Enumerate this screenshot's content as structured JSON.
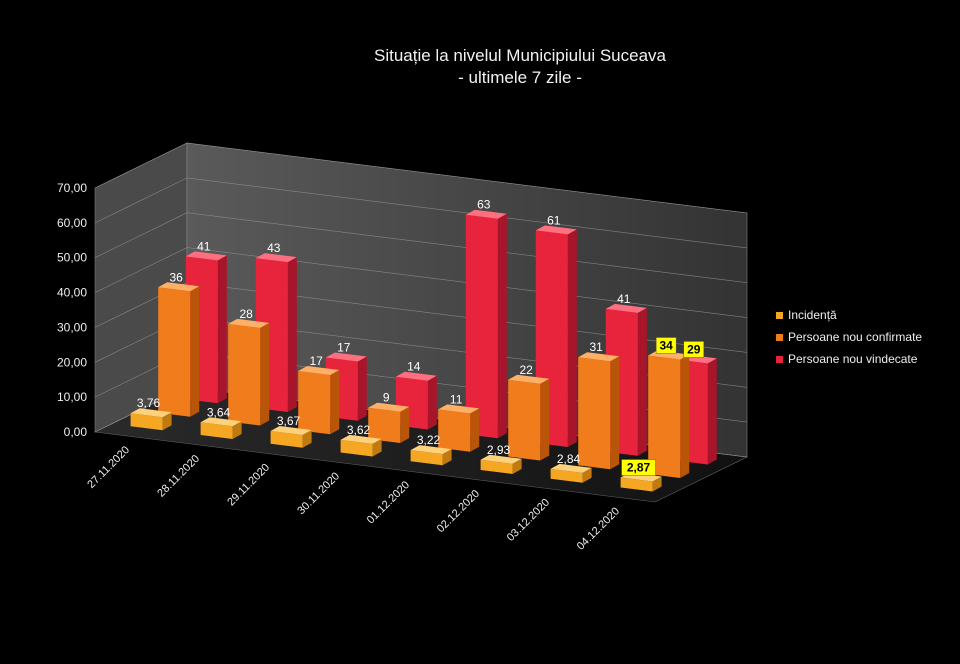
{
  "chart_data": {
    "type": "bar",
    "title": "Situație la nivelul Municipiului Suceava",
    "subtitle": "- ultimele 7 zile -",
    "categories": [
      "27.11.2020",
      "28.11.2020",
      "29.11.2020",
      "30.11.2020",
      "01.12.2020",
      "02.12.2020",
      "03.12.2020",
      "04.12.2020"
    ],
    "yticks": [
      "0,00",
      "10,00",
      "20,00",
      "30,00",
      "40,00",
      "50,00",
      "60,00",
      "70,00"
    ],
    "ylim": [
      0,
      70
    ],
    "series": [
      {
        "name": "Incidență",
        "color": "#f5a623",
        "values": [
          3.76,
          3.64,
          3.67,
          3.62,
          3.22,
          2.93,
          2.84,
          2.87
        ],
        "labels": [
          "3,76",
          "3,64",
          "3,67",
          "3,62",
          "3,22",
          "2,93",
          "2,84",
          "2,87"
        ]
      },
      {
        "name": "Persoane nou confirmate",
        "color": "#f07c1c",
        "values": [
          36,
          28,
          17,
          9,
          11,
          22,
          31,
          34
        ],
        "labels": [
          "36",
          "28",
          "17",
          "9",
          "11",
          "22",
          "31",
          "34"
        ]
      },
      {
        "name": "Persoane nou vindecate",
        "color": "#e8243c",
        "values": [
          41,
          43,
          17,
          14,
          63,
          61,
          41,
          29
        ],
        "labels": [
          "41",
          "43",
          "17",
          "14",
          "63",
          "61",
          "41",
          "29"
        ]
      }
    ],
    "highlighted_category": "04.12.2020",
    "highlight_color": "#ffff00",
    "legend": "right"
  }
}
